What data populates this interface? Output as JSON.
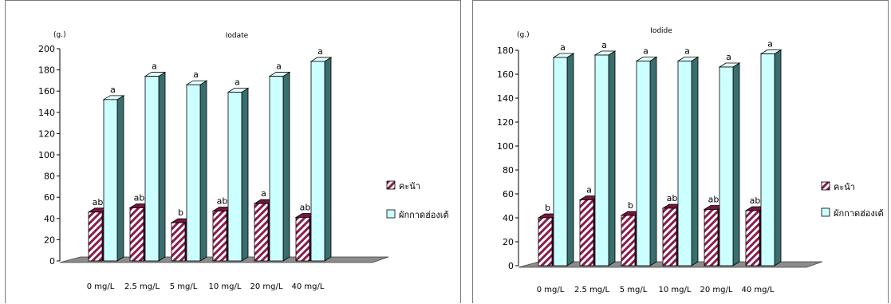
{
  "chart_data": [
    {
      "type": "bar",
      "title": "Iodate",
      "ylabel": "(g.)",
      "categories": [
        "0 mg/L",
        "2.5 mg/L",
        "5 mg/L",
        "10 mg/L",
        "20 mg/L",
        "40 mg/L"
      ],
      "ylim": [
        0,
        200
      ],
      "yticks": [
        0,
        20,
        40,
        60,
        80,
        100,
        120,
        140,
        160,
        180,
        200
      ],
      "legend_position": "right",
      "series": [
        {
          "name": "คะน้า",
          "pattern": "hatched",
          "color": "#8b1a4a",
          "values": [
            46,
            50,
            36,
            47,
            54,
            41
          ],
          "labels": [
            "ab",
            "ab",
            "b",
            "ab",
            "a",
            "ab"
          ]
        },
        {
          "name": "ผักกาดฮ่องเต้",
          "color": "#ccffff",
          "values": [
            152,
            174,
            166,
            159,
            174,
            188
          ],
          "labels": [
            "a",
            "a",
            "a",
            "a",
            "a",
            "a"
          ]
        }
      ]
    },
    {
      "type": "bar",
      "title": "Iodide",
      "ylabel": "(g.)",
      "categories": [
        "0 mg/L",
        "2.5 mg/L",
        "5 mg/L",
        "10 mg/L",
        "20 mg/L",
        "40 mg/L"
      ],
      "ylim": [
        0,
        180
      ],
      "yticks": [
        0,
        20,
        40,
        60,
        80,
        100,
        120,
        140,
        160,
        180
      ],
      "legend_position": "right",
      "series": [
        {
          "name": "คะน้า",
          "pattern": "hatched",
          "color": "#8b1a4a",
          "values": [
            40,
            55,
            42,
            48,
            47,
            46
          ],
          "labels": [
            "b",
            "a",
            "b",
            "ab",
            "ab",
            "ab"
          ]
        },
        {
          "name": "ผักกาดฮ่องเต้",
          "color": "#ccffff",
          "values": [
            174,
            176,
            171,
            171,
            166,
            177
          ],
          "labels": [
            "a",
            "a",
            "a",
            "a",
            "a",
            "a"
          ]
        }
      ]
    }
  ]
}
